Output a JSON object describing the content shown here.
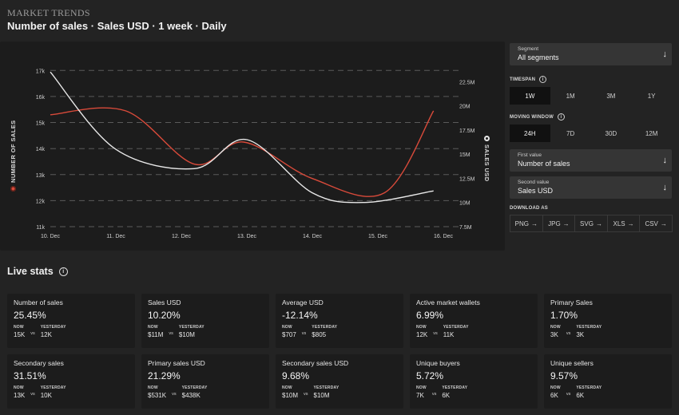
{
  "header": {
    "brand": "MARKET TRENDS",
    "title": "Number of sales · Sales USD · 1 week · Daily"
  },
  "chart_data": {
    "type": "line",
    "x": [
      "10. Dec",
      "11. Dec",
      "12. Dec",
      "13. Dec",
      "14. Dec",
      "15. Dec",
      "16. Dec"
    ],
    "y_left": {
      "label": "NUMBER OF SALES",
      "ticks": [
        "11k",
        "12k",
        "13k",
        "14k",
        "15k",
        "16k",
        "17k"
      ],
      "range": [
        11000,
        17500
      ]
    },
    "y_right": {
      "label": "SALES USD",
      "ticks": [
        "7.5M",
        "10M",
        "12.5M",
        "15M",
        "17.5M",
        "20M",
        "22.5M"
      ],
      "range": [
        7500000,
        25000000
      ]
    },
    "grid": true,
    "series": [
      {
        "name": "NUMBER OF SALES",
        "axis": "left",
        "color": "#d84a3a",
        "points": [
          [
            0,
            15300
          ],
          [
            1.15,
            15450
          ],
          [
            2.2,
            13400
          ],
          [
            2.95,
            14250
          ],
          [
            4.0,
            12850
          ],
          [
            5.1,
            12300
          ],
          [
            5.85,
            15450
          ]
        ]
      },
      {
        "name": "SALES USD",
        "axis": "right",
        "color": "#e8e8e8",
        "points": [
          [
            0,
            23500000
          ],
          [
            1.0,
            15500000
          ],
          [
            2.2,
            13500000
          ],
          [
            3.0,
            16500000
          ],
          [
            4.0,
            11000000
          ],
          [
            4.8,
            10000000
          ],
          [
            5.85,
            11200000
          ]
        ]
      }
    ]
  },
  "controls": {
    "segment": {
      "label": "Segment",
      "value": "All segments"
    },
    "timespan": {
      "label": "TIMESPAN",
      "options": [
        "1W",
        "1M",
        "3M",
        "1Y"
      ],
      "active": 0
    },
    "moving_window": {
      "label": "MOVING WINDOW",
      "options": [
        "24H",
        "7D",
        "30D",
        "12M"
      ],
      "active": 0
    },
    "first_value": {
      "label": "First value",
      "value": "Number of sales"
    },
    "second_value": {
      "label": "Second value",
      "value": "Sales USD"
    },
    "download": {
      "label": "DOWNLOAD AS",
      "options": [
        "PNG",
        "JPG",
        "SVG",
        "XLS",
        "CSV"
      ],
      "arrow": "→"
    },
    "chevron": "↓",
    "info": "i"
  },
  "live": {
    "title": "Live stats",
    "now_label": "NOW",
    "yesterday_label": "YESTERDAY",
    "vs": "vs",
    "cards": [
      {
        "name": "Number of sales",
        "pct": "25.45%",
        "now": "15K",
        "yesterday": "12K"
      },
      {
        "name": "Sales USD",
        "pct": "10.20%",
        "now": "$11M",
        "yesterday": "$10M"
      },
      {
        "name": "Average USD",
        "pct": "-12.14%",
        "now": "$707",
        "yesterday": "$805"
      },
      {
        "name": "Active market wallets",
        "pct": "6.99%",
        "now": "12K",
        "yesterday": "11K"
      },
      {
        "name": "Primary Sales",
        "pct": "1.70%",
        "now": "3K",
        "yesterday": "3K"
      },
      {
        "name": "Secondary sales",
        "pct": "31.51%",
        "now": "13K",
        "yesterday": "10K"
      },
      {
        "name": "Primary sales USD",
        "pct": "21.29%",
        "now": "$531K",
        "yesterday": "$438K"
      },
      {
        "name": "Secondary sales USD",
        "pct": "9.68%",
        "now": "$10M",
        "yesterday": "$10M"
      },
      {
        "name": "Unique buyers",
        "pct": "5.72%",
        "now": "7K",
        "yesterday": "6K"
      },
      {
        "name": "Unique sellers",
        "pct": "9.57%",
        "now": "6K",
        "yesterday": "6K"
      }
    ]
  }
}
